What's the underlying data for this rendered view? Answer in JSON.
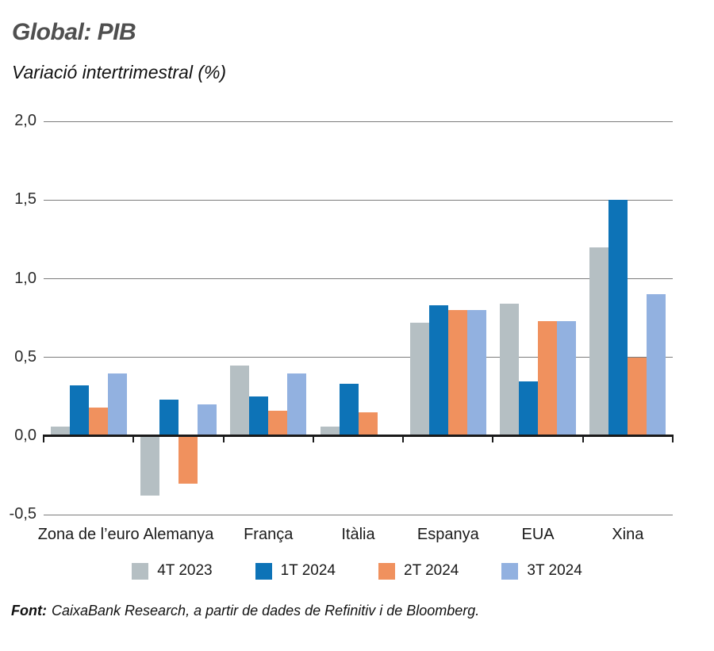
{
  "header": {
    "title": "Global: PIB",
    "subtitle": "Variació intertrimestral (%)"
  },
  "chart_data": {
    "type": "bar",
    "title": "Global: PIB",
    "subtitle": "Variació intertrimestral (%)",
    "ylabel": "Variació intertrimestral (%)",
    "xlabel": "",
    "categories": [
      "Zona de l’euro",
      "Alemanya",
      "França",
      "Itàlia",
      "Espanya",
      "EUA",
      "Xina"
    ],
    "series": [
      {
        "name": "4T 2023",
        "color": "#b5bfc3",
        "values": [
          0.06,
          -0.38,
          0.45,
          0.06,
          0.72,
          0.84,
          1.2
        ]
      },
      {
        "name": "1T 2024",
        "color": "#0d73b7",
        "values": [
          0.32,
          0.23,
          0.25,
          0.33,
          0.83,
          0.35,
          1.5
        ]
      },
      {
        "name": "2T 2024",
        "color": "#f0915e",
        "values": [
          0.18,
          -0.3,
          0.16,
          0.15,
          0.8,
          0.73,
          0.5
        ]
      },
      {
        "name": "3T 2024",
        "color": "#92b1e0",
        "values": [
          0.4,
          0.2,
          0.4,
          0.0,
          0.8,
          0.73,
          0.9
        ]
      }
    ],
    "y_ticks": [
      2.0,
      1.5,
      1.0,
      0.5,
      0.0,
      -0.5
    ],
    "y_tick_labels": [
      "2,0",
      "1,5",
      "1,0",
      "0,5",
      "0,0",
      "-0,5"
    ],
    "ylim": [
      -0.5,
      2.0
    ],
    "grid": true,
    "legend_position": "bottom"
  },
  "footer": {
    "label": "Font:",
    "text": "CaixaBank Research, a partir de dades de Refinitiv i de Bloomberg."
  }
}
